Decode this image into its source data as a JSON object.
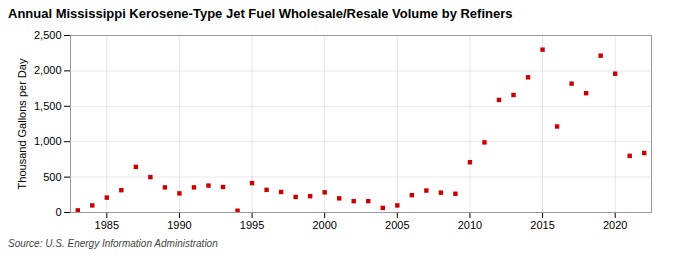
{
  "chart_data": {
    "type": "scatter",
    "title": "Annual Mississippi Kerosene-Type Jet Fuel Wholesale/Resale Volume by Refiners",
    "ylabel": "Thousand Gallons per Day",
    "source": "Source: U.S. Energy Information Administration",
    "x": [
      1983,
      1984,
      1985,
      1986,
      1987,
      1988,
      1989,
      1990,
      1991,
      1992,
      1993,
      1994,
      1995,
      1996,
      1997,
      1998,
      1999,
      2000,
      2001,
      2002,
      2003,
      2004,
      2005,
      2006,
      2007,
      2008,
      2009,
      2010,
      2011,
      2012,
      2013,
      2014,
      2015,
      2016,
      2017,
      2018,
      2019,
      2020,
      2021,
      2022
    ],
    "values": [
      30,
      100,
      210,
      315,
      645,
      500,
      355,
      270,
      355,
      380,
      360,
      25,
      415,
      320,
      290,
      220,
      230,
      285,
      200,
      160,
      160,
      65,
      100,
      245,
      310,
      280,
      265,
      710,
      990,
      1590,
      1660,
      1910,
      2300,
      1215,
      1820,
      1685,
      2215,
      1960,
      800,
      840
    ],
    "color": "#cc0000",
    "marker": "square",
    "grid": true,
    "xlim": [
      1982.5,
      2022.5
    ],
    "xticks": [
      1985,
      1990,
      1995,
      2000,
      2005,
      2010,
      2015,
      2020
    ],
    "ylim": [
      0,
      2500
    ],
    "yticks": [
      0,
      500,
      {
        "value": 1000,
        "label": "1,000"
      },
      {
        "value": 1500,
        "label": "1,500"
      },
      {
        "value": 2000,
        "label": "2,000"
      },
      {
        "value": 2500,
        "label": "2,500"
      }
    ]
  }
}
